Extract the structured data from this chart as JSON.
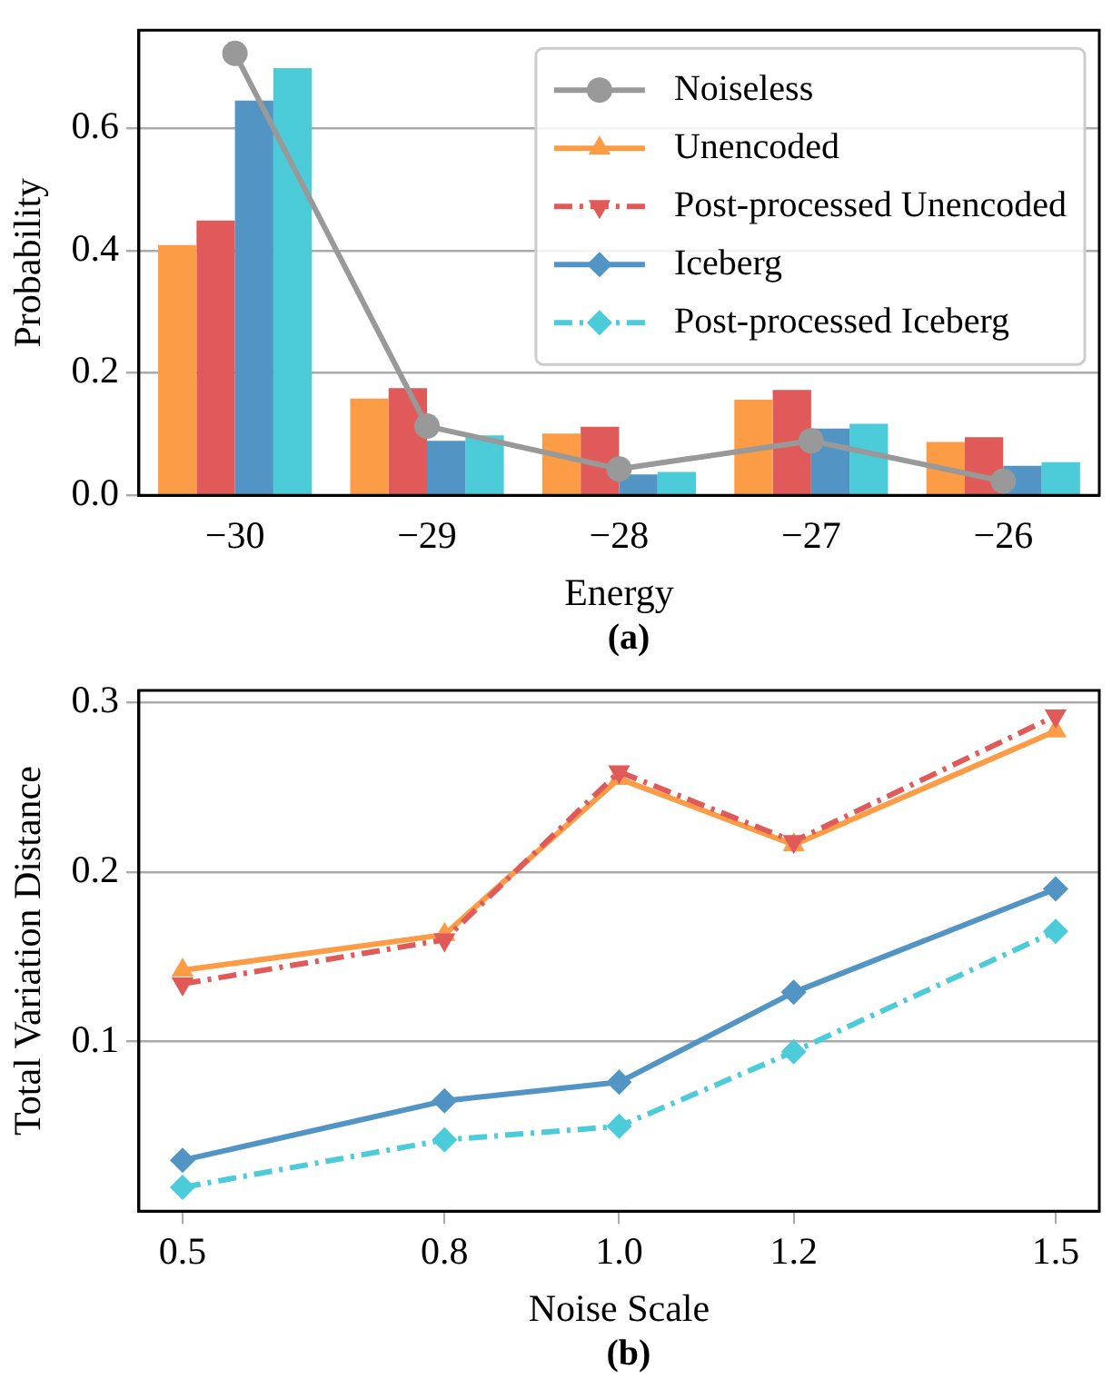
{
  "chart_data": [
    {
      "type": "bar",
      "xlabel": "Energy",
      "ylabel": "Probability",
      "annotations": [
        "(a)"
      ],
      "categories": [
        "−30",
        "−29",
        "−28",
        "−27",
        "−26"
      ],
      "series": [
        {
          "name": "Noiseless",
          "type": "line",
          "color": "#999999",
          "marker": "circle",
          "line_style": "solid",
          "values": [
            0.722,
            0.113,
            0.043,
            0.089,
            0.023
          ]
        },
        {
          "name": "Unencoded",
          "color": "#fd9c47",
          "marker": "triangle",
          "line_style": "solid",
          "values": [
            0.409,
            0.158,
            0.101,
            0.156,
            0.087
          ]
        },
        {
          "name": "Post-processed Unencoded",
          "color": "#e05a5a",
          "marker": "triangle_down",
          "line_style": "dashed",
          "values": [
            0.449,
            0.175,
            0.112,
            0.172,
            0.095
          ]
        },
        {
          "name": "Iceberg",
          "color": "#5294c4",
          "marker": "diamond",
          "line_style": "solid",
          "values": [
            0.645,
            0.089,
            0.034,
            0.109,
            0.048
          ]
        },
        {
          "name": "Post-processed Iceberg",
          "color": "#4ccbd9",
          "marker": "diamond",
          "line_style": "dashed",
          "values": [
            0.698,
            0.098,
            0.038,
            0.117,
            0.054
          ]
        }
      ],
      "ylim": [
        0,
        0.76
      ],
      "yticks": [
        {
          "value": 0,
          "label": "0.0"
        },
        {
          "value": 0.2,
          "label": "0.2"
        },
        {
          "value": 0.4,
          "label": "0.4"
        },
        {
          "value": 0.6,
          "label": "0.6"
        }
      ],
      "grid": "y",
      "legend": "top right"
    },
    {
      "type": "line",
      "xlabel": "Noise Scale",
      "ylabel": "Total Variation Distance",
      "annotations": [
        "(b)"
      ],
      "x": [
        0.5,
        0.8,
        1.0,
        1.2,
        1.5
      ],
      "series": [
        {
          "color": "#fd9c47",
          "marker": "triangle",
          "line_style": "solid",
          "values": [
            0.142,
            0.163,
            0.255,
            0.216,
            0.283
          ]
        },
        {
          "color": "#e05a5a",
          "marker": "triangle_down",
          "line_style": "dashed",
          "values": [
            0.134,
            0.16,
            0.259,
            0.218,
            0.292
          ]
        },
        {
          "color": "#5294c4",
          "marker": "diamond",
          "line_style": "solid",
          "values": [
            0.03,
            0.065,
            0.076,
            0.129,
            0.19
          ]
        },
        {
          "color": "#4ccbd9",
          "marker": "diamond",
          "line_style": "dashed",
          "values": [
            0.014,
            0.042,
            0.05,
            0.094,
            0.165
          ]
        }
      ],
      "xlim": [
        0.45,
        1.55
      ],
      "xticks": [
        0.5,
        0.8,
        {
          "value": 1.0,
          "label": "1.0"
        },
        1.2,
        1.5
      ],
      "ylim": [
        0,
        0.307
      ],
      "yticks": [
        0.1,
        0.2,
        0.3
      ],
      "grid": "y"
    }
  ]
}
